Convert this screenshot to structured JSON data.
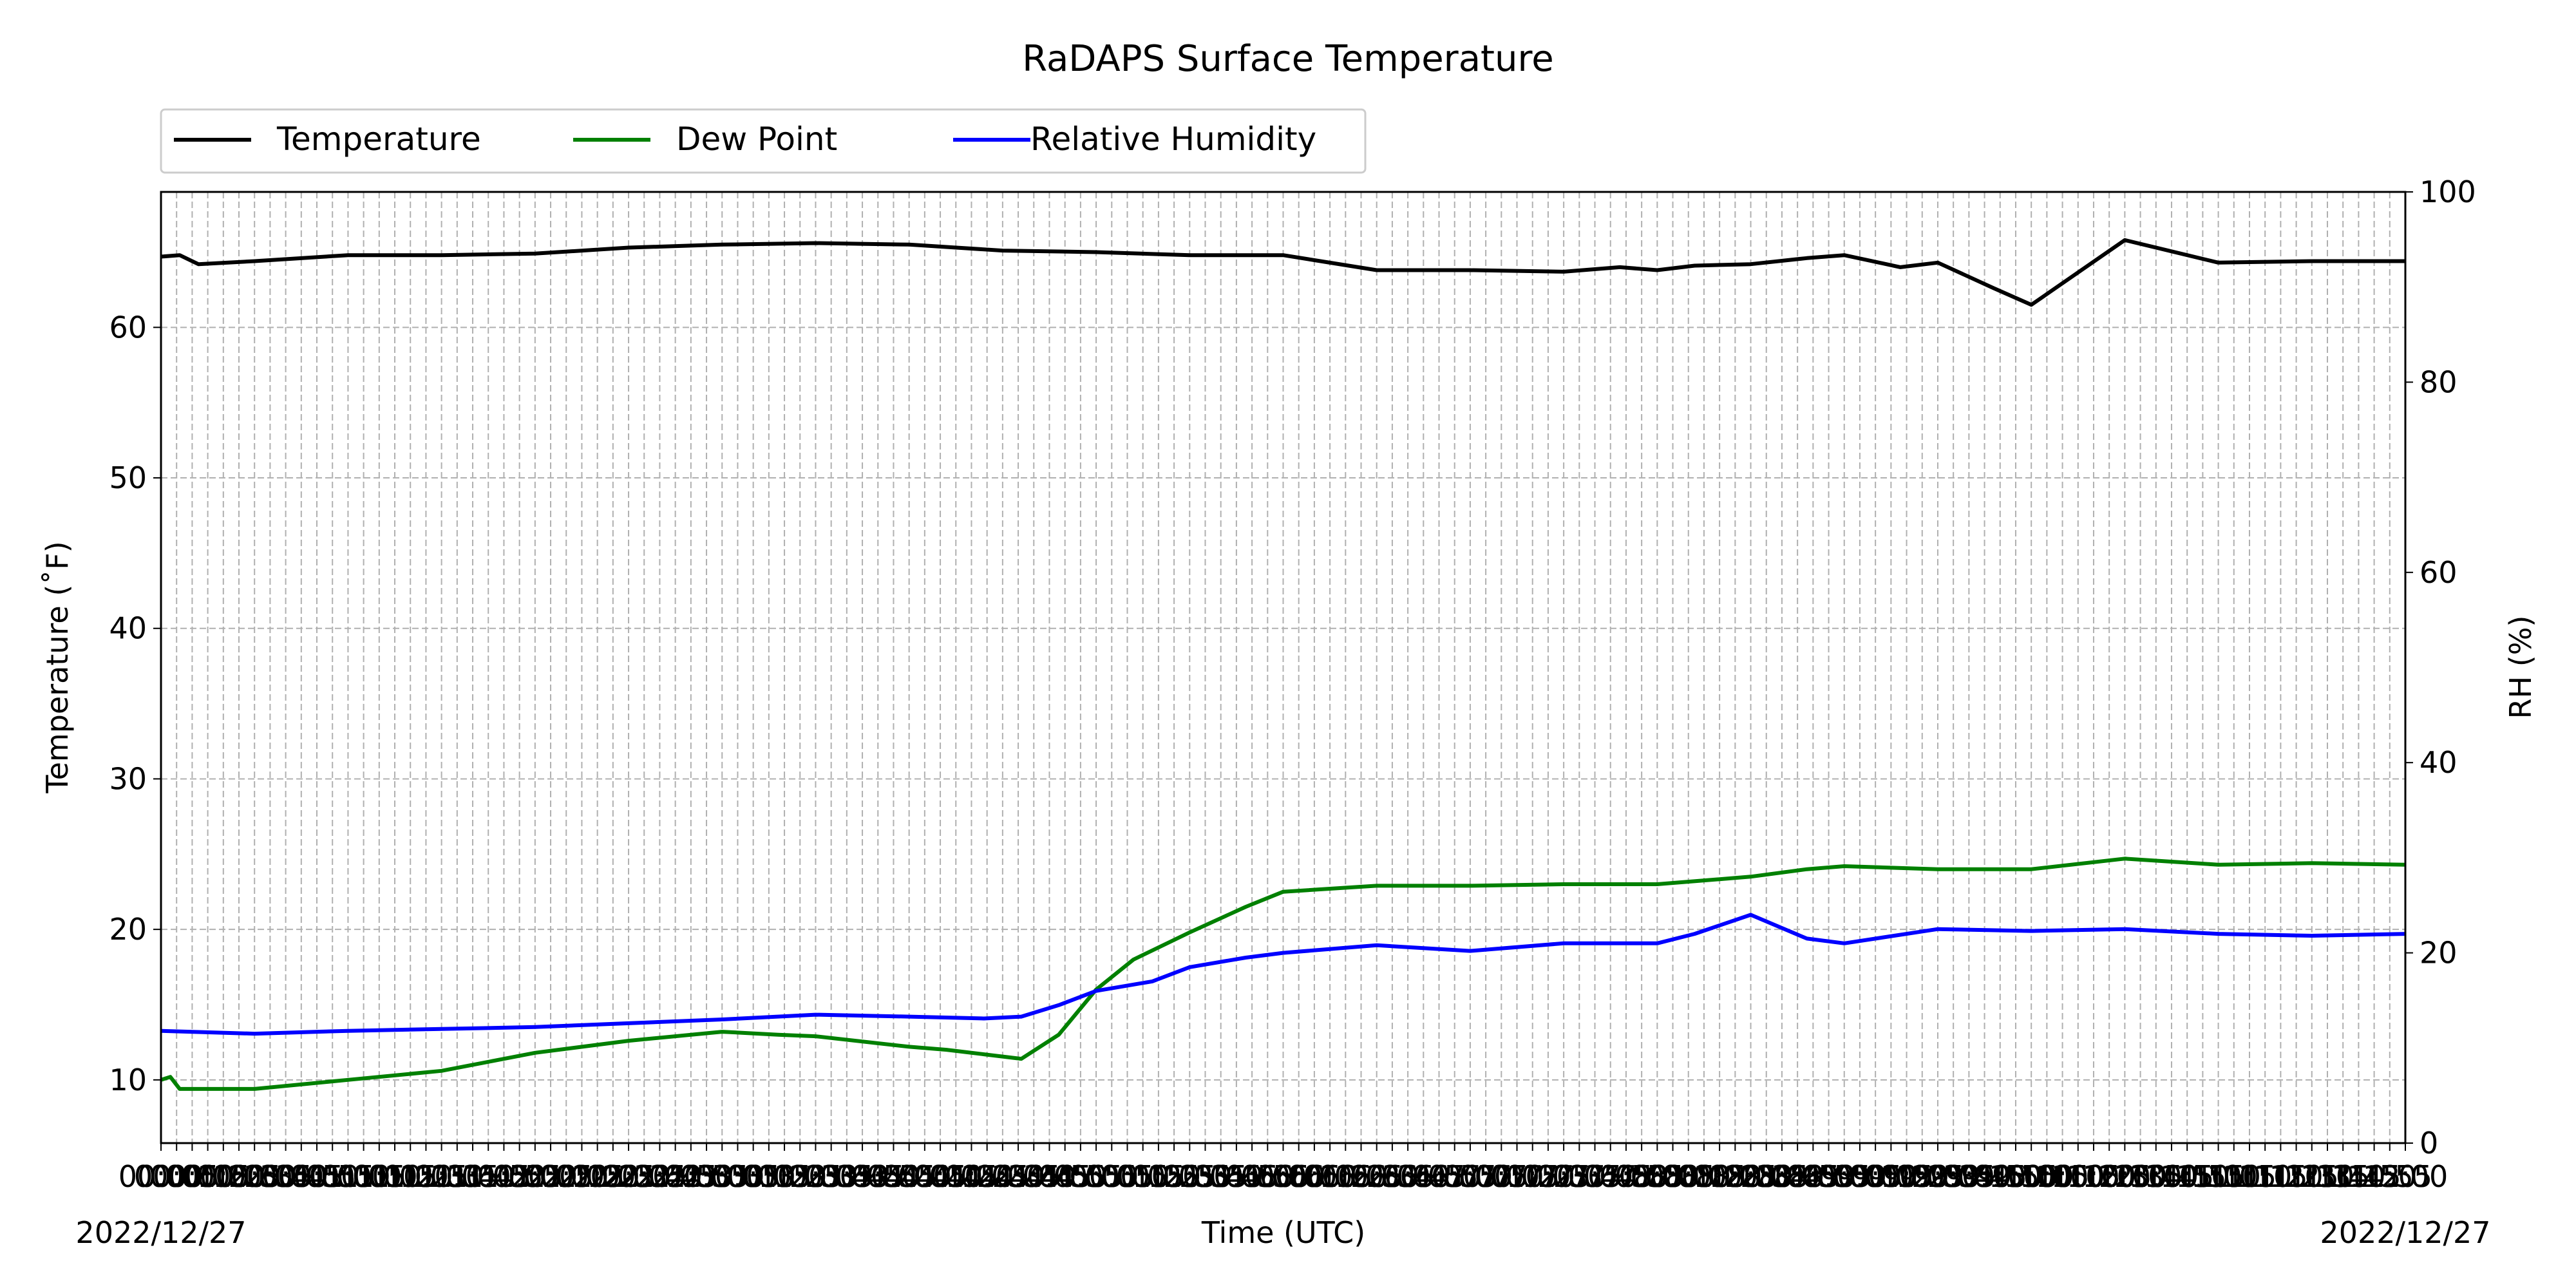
{
  "chart_data": {
    "type": "line",
    "title": "RaDAPS Surface Temperature",
    "xlabel": "Time (UTC)",
    "ylabel": "Temperature ($^\\circ$F)",
    "ylabel_display": "Temperature (˚F)",
    "y2label": "RH (%)",
    "x_start_label": "2022/12/27",
    "x_end_label": "2022/12/27",
    "x_time_start": "00:00",
    "x_time_end": "12:00",
    "x_tick_step_minutes": 5,
    "ylim": [
      5.8,
      69
    ],
    "yticks": [
      10,
      20,
      30,
      40,
      50,
      60
    ],
    "y2lim": [
      0,
      100
    ],
    "y2ticks": [
      0,
      20,
      40,
      60,
      80,
      100
    ],
    "grid": true,
    "legend": {
      "placement": "top-left, above plot",
      "entries": [
        "Temperature",
        "Dew Point",
        "Relative Humidity"
      ]
    },
    "series": [
      {
        "name": "Temperature",
        "color": "#000000",
        "axis": "left",
        "x_hours": [
          0.0,
          0.1,
          0.2,
          0.5,
          1.0,
          1.5,
          2.0,
          2.5,
          3.0,
          3.5,
          4.0,
          4.5,
          5.0,
          5.5,
          6.0,
          6.5,
          7.0,
          7.5,
          7.8,
          8.0,
          8.2,
          8.5,
          8.8,
          9.0,
          9.3,
          9.5,
          9.8,
          10.0,
          10.5,
          11.0,
          11.5,
          12.0
        ],
        "values": [
          64.7,
          64.8,
          64.2,
          64.4,
          64.8,
          64.8,
          64.9,
          65.3,
          65.5,
          65.6,
          65.5,
          65.1,
          65.0,
          64.8,
          64.8,
          63.8,
          63.8,
          63.7,
          64.0,
          63.8,
          64.1,
          64.2,
          64.6,
          64.8,
          64.0,
          64.3,
          62.6,
          61.5,
          65.8,
          64.3,
          64.4,
          64.4
        ]
      },
      {
        "name": "Dew Point",
        "color": "#008000",
        "axis": "left",
        "x_hours": [
          0.0,
          0.05,
          0.1,
          0.5,
          1.0,
          1.5,
          2.0,
          2.5,
          3.0,
          3.3,
          3.5,
          4.0,
          4.2,
          4.4,
          4.6,
          4.8,
          5.0,
          5.2,
          5.5,
          5.8,
          6.0,
          6.5,
          7.0,
          7.5,
          8.0,
          8.5,
          8.8,
          9.0,
          9.5,
          10.0,
          10.5,
          11.0,
          11.5,
          12.0
        ],
        "values": [
          10.0,
          10.2,
          9.4,
          9.4,
          10.0,
          10.6,
          11.8,
          12.6,
          13.2,
          13.0,
          12.9,
          12.2,
          12.0,
          11.7,
          11.4,
          13.0,
          16.0,
          18.0,
          19.8,
          21.5,
          22.5,
          22.9,
          22.9,
          23.0,
          23.0,
          23.5,
          24.0,
          24.2,
          24.0,
          24.0,
          24.7,
          24.3,
          24.4,
          24.3
        ]
      },
      {
        "name": "Relative Humidity",
        "color": "#0000ff",
        "axis": "right",
        "x_hours": [
          0.0,
          0.5,
          1.0,
          1.5,
          2.0,
          2.5,
          3.0,
          3.5,
          4.0,
          4.4,
          4.6,
          4.8,
          5.0,
          5.3,
          5.5,
          5.8,
          6.0,
          6.5,
          7.0,
          7.5,
          8.0,
          8.2,
          8.5,
          8.8,
          9.0,
          9.5,
          10.0,
          10.5,
          11.0,
          11.5,
          12.0
        ],
        "values": [
          11.8,
          11.5,
          11.8,
          12.0,
          12.2,
          12.6,
          13.0,
          13.5,
          13.3,
          13.1,
          13.3,
          14.5,
          16.0,
          17.0,
          18.5,
          19.5,
          20.0,
          20.8,
          20.2,
          21.0,
          21.0,
          22.0,
          24.0,
          21.5,
          21.0,
          22.5,
          22.3,
          22.5,
          22.0,
          21.8,
          22.0
        ]
      }
    ]
  }
}
